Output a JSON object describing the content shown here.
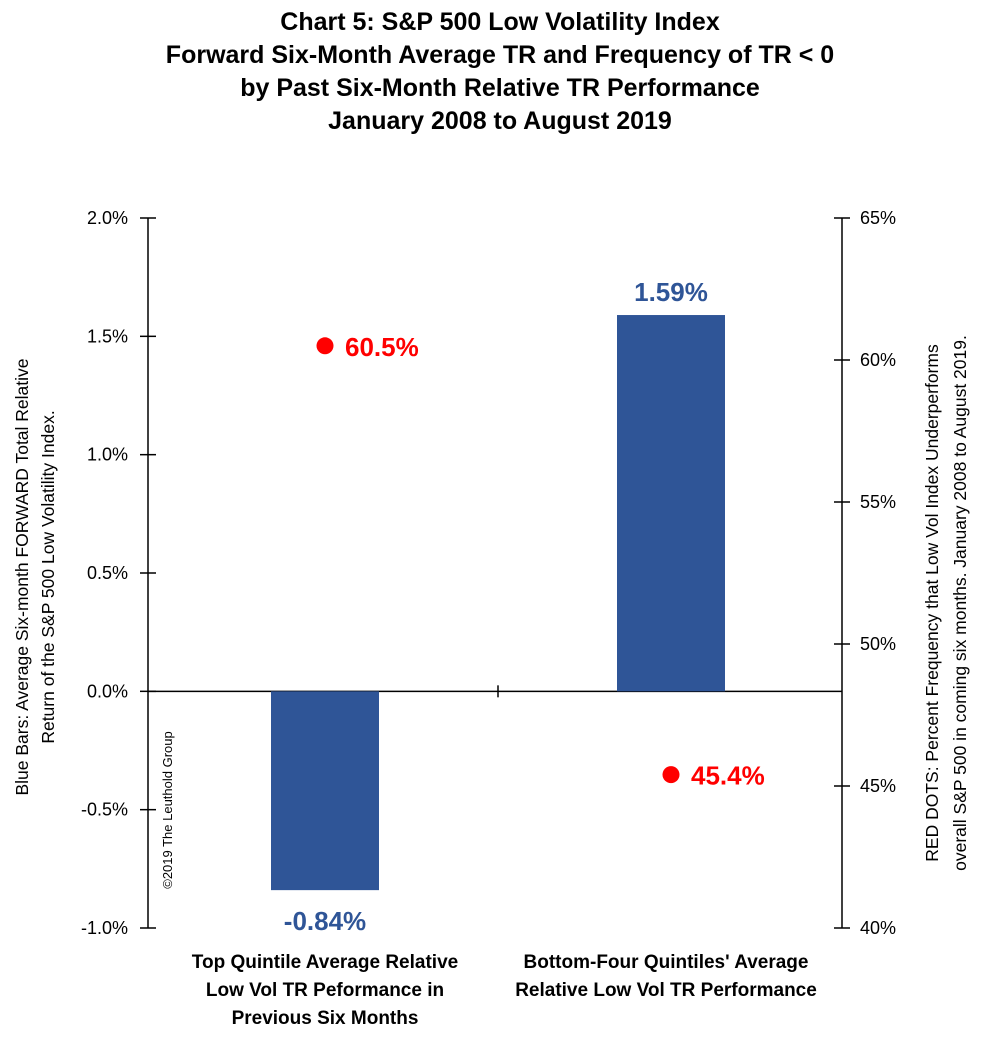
{
  "chart_data": {
    "type": "bar",
    "title_lines": [
      "Chart 5: S&P 500 Low Volatility Index",
      "Forward Six-Month Average TR and Frequency of TR < 0",
      "by Past Six-Month Relative TR Performance",
      "January 2008 to August 2019"
    ],
    "categories": [
      [
        "Top Quintile Average Relative",
        "Low Vol TR Peformance in",
        "Previous Six Months"
      ],
      [
        "Bottom-Four Quintiles' Average",
        "Relative Low Vol TR Performance"
      ]
    ],
    "series": [
      {
        "kind": "bar",
        "axis": "left",
        "values": [
          -0.84,
          1.59
        ],
        "labels": [
          "-0.84%",
          "1.59%"
        ],
        "color": "#2F5597"
      },
      {
        "kind": "dot",
        "axis": "right",
        "values": [
          60.5,
          45.4
        ],
        "labels": [
          "60.5%",
          "45.4%"
        ],
        "color": "#FF0000"
      }
    ],
    "y_left": {
      "label_lines": [
        "Blue Bars: Average  Six-month FORWARD Total Relative",
        "Return of the S&P 500 Low Volatility Index."
      ],
      "min": -1.0,
      "max": 2.0,
      "ticks": [
        -1.0,
        -0.5,
        0.0,
        0.5,
        1.0,
        1.5,
        2.0
      ],
      "tick_labels": [
        "-1.0%",
        "-0.5%",
        "0.0%",
        "0.5%",
        "1.0%",
        "1.5%",
        "2.0%"
      ]
    },
    "y_right": {
      "label_lines": [
        "RED DOTS: Percent Frequency that Low Vol Index Underperforms",
        "overall S&P 500  in coming six months. January 2008 to August 2019."
      ],
      "min": 40,
      "max": 65,
      "ticks": [
        40,
        45,
        50,
        55,
        60,
        65
      ],
      "tick_labels": [
        "40%",
        "45%",
        "50%",
        "55%",
        "60%",
        "65%"
      ]
    },
    "watermark": "©2019 The Leuthold Group",
    "grid": false,
    "legend": "none"
  }
}
